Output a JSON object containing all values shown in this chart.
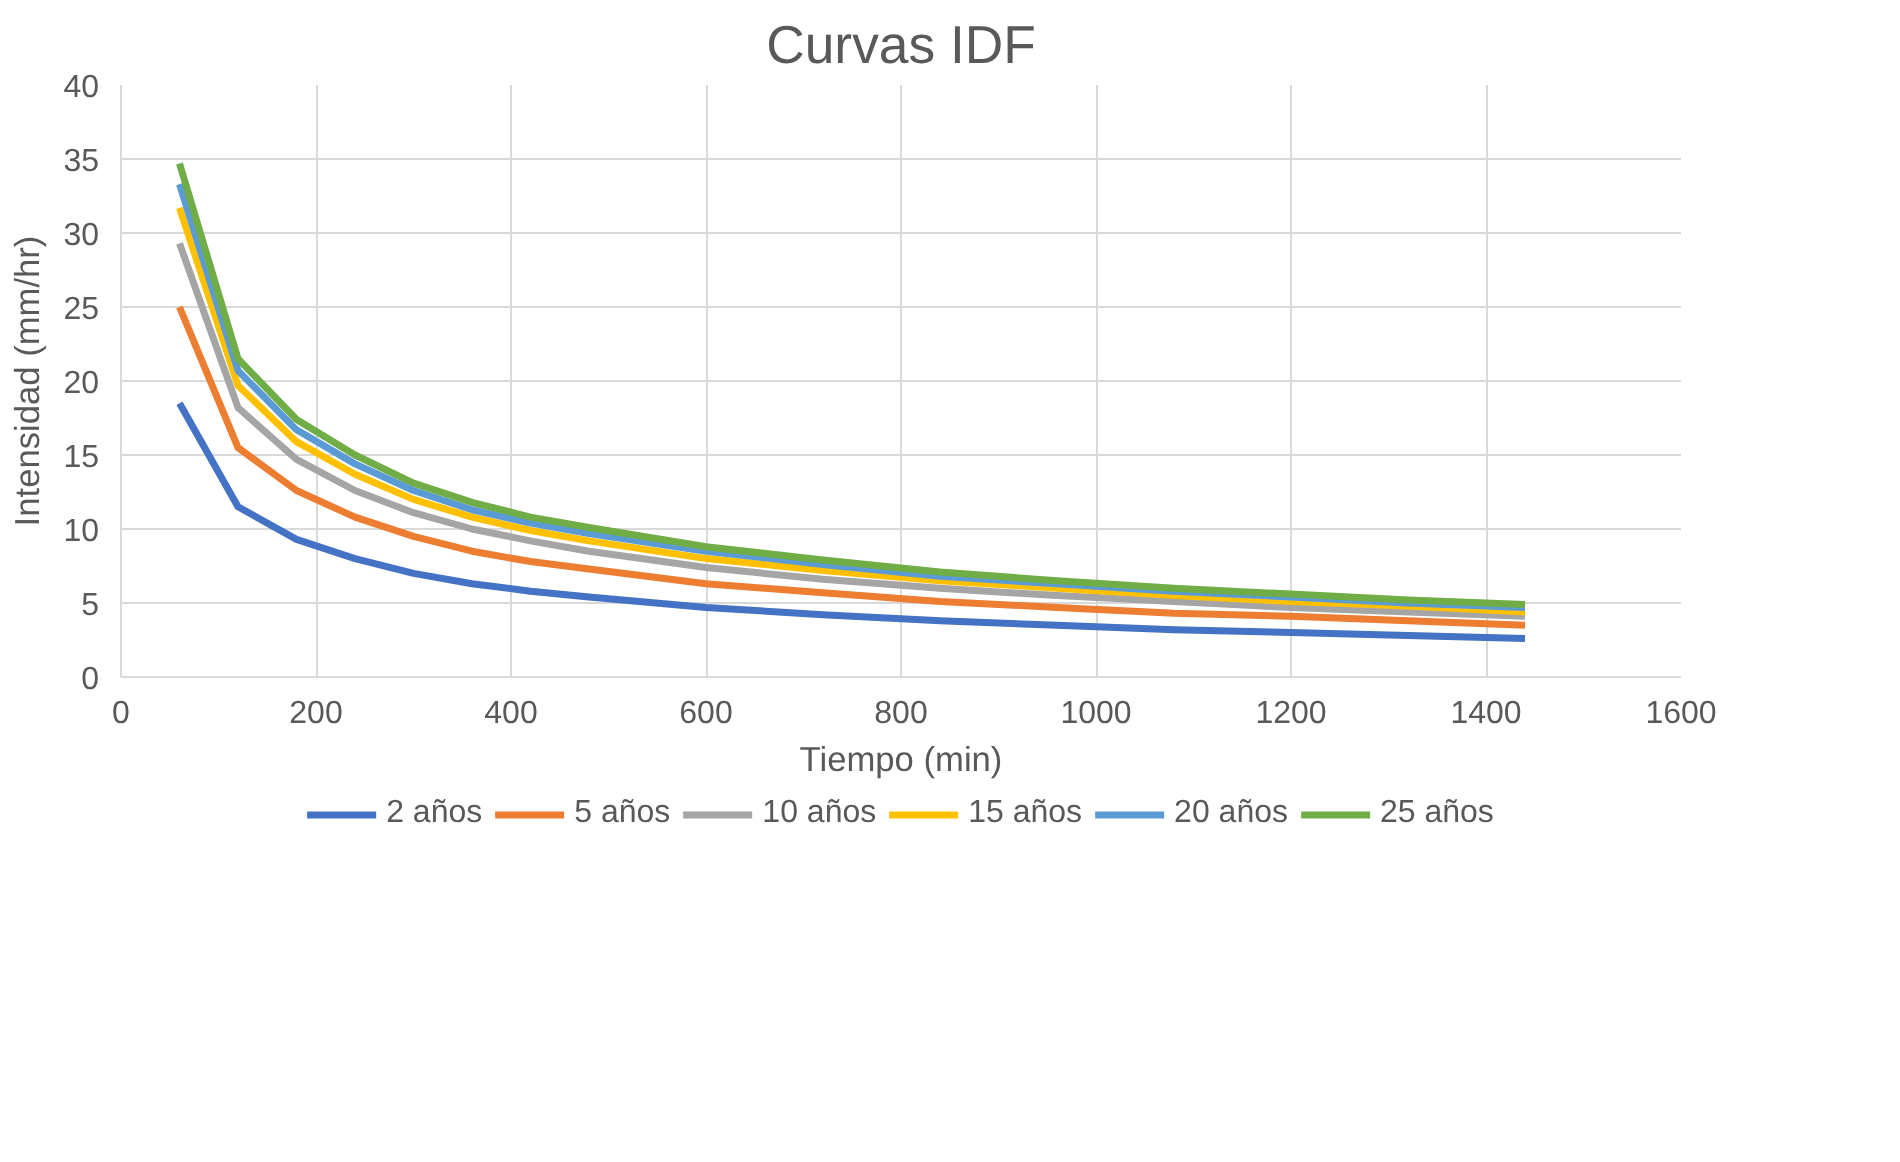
{
  "chart_data": {
    "type": "line",
    "title": "Curvas IDF",
    "xlabel": "Tiempo (min)",
    "ylabel": "Intensidad (mm/hr)",
    "x": [
      60,
      120,
      180,
      240,
      300,
      360,
      420,
      480,
      600,
      720,
      840,
      960,
      1080,
      1200,
      1320,
      1440
    ],
    "series": [
      {
        "name": "2 años",
        "color": "#4472c4",
        "values": [
          18.5,
          11.5,
          9.3,
          8.0,
          7.0,
          6.3,
          5.8,
          5.4,
          4.7,
          4.2,
          3.8,
          3.5,
          3.2,
          3.0,
          2.8,
          2.6
        ]
      },
      {
        "name": "5 años",
        "color": "#ed7d31",
        "values": [
          25.0,
          15.5,
          12.6,
          10.8,
          9.5,
          8.5,
          7.8,
          7.3,
          6.3,
          5.7,
          5.1,
          4.7,
          4.3,
          4.1,
          3.8,
          3.5
        ]
      },
      {
        "name": "10 años",
        "color": "#a5a5a5",
        "values": [
          29.3,
          18.2,
          14.7,
          12.6,
          11.1,
          10.0,
          9.2,
          8.5,
          7.4,
          6.6,
          6.0,
          5.5,
          5.1,
          4.7,
          4.4,
          4.1
        ]
      },
      {
        "name": "15 años",
        "color": "#ffc000",
        "values": [
          31.7,
          19.7,
          15.9,
          13.7,
          12.0,
          10.8,
          9.9,
          9.2,
          8.0,
          7.2,
          6.5,
          6.0,
          5.5,
          5.1,
          4.8,
          4.4
        ]
      },
      {
        "name": "20 años",
        "color": "#5b9bd5",
        "values": [
          33.3,
          20.7,
          16.7,
          14.4,
          12.6,
          11.3,
          10.4,
          9.7,
          8.5,
          7.6,
          6.8,
          6.3,
          5.8,
          5.4,
          5.0,
          4.7
        ]
      },
      {
        "name": "25 años",
        "color": "#70ad47",
        "values": [
          34.7,
          21.5,
          17.4,
          15.0,
          13.1,
          11.8,
          10.8,
          10.1,
          8.8,
          7.9,
          7.1,
          6.5,
          6.0,
          5.6,
          5.2,
          4.9
        ]
      }
    ],
    "xlim": [
      0,
      1600
    ],
    "xticks": [
      0,
      200,
      400,
      600,
      800,
      1000,
      1200,
      1400,
      1600
    ],
    "ylim": [
      0,
      40
    ],
    "yticks": [
      0,
      5,
      10,
      15,
      20,
      25,
      30,
      35,
      40
    ],
    "grid": true,
    "legend": "bottom",
    "marker": "none",
    "line_style": "solid"
  }
}
